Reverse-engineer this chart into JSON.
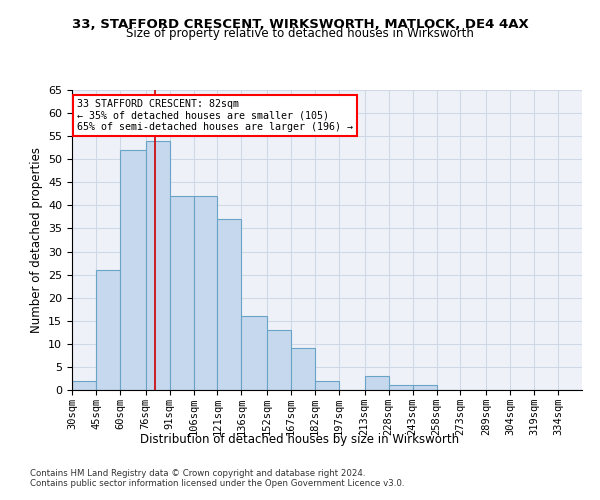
{
  "title1": "33, STAFFORD CRESCENT, WIRKSWORTH, MATLOCK, DE4 4AX",
  "title2": "Size of property relative to detached houses in Wirksworth",
  "xlabel": "Distribution of detached houses by size in Wirksworth",
  "ylabel": "Number of detached properties",
  "categories": [
    "30sqm",
    "45sqm",
    "60sqm",
    "76sqm",
    "91sqm",
    "106sqm",
    "121sqm",
    "136sqm",
    "152sqm",
    "167sqm",
    "182sqm",
    "197sqm",
    "213sqm",
    "228sqm",
    "243sqm",
    "258sqm",
    "273sqm",
    "289sqm",
    "304sqm",
    "319sqm",
    "334sqm"
  ],
  "values": [
    2,
    26,
    52,
    54,
    42,
    42,
    37,
    16,
    13,
    9,
    2,
    0,
    3,
    1,
    1,
    0,
    0,
    0,
    0,
    0,
    0
  ],
  "bar_color": "#c5d8ed",
  "bar_edge_color": "#6aa3c8",
  "property_line_x": 82,
  "bin_edges": [
    30,
    45,
    60,
    76,
    91,
    106,
    121,
    136,
    152,
    167,
    182,
    197,
    213,
    228,
    243,
    258,
    273,
    289,
    304,
    319,
    334,
    349
  ],
  "annotation_line1": "33 STAFFORD CRESCENT: 82sqm",
  "annotation_line2": "← 35% of detached houses are smaller (105)",
  "annotation_line3": "65% of semi-detached houses are larger (196) →",
  "annotation_box_color": "white",
  "annotation_box_edge_color": "red",
  "red_line_color": "#cc0000",
  "ylim": [
    0,
    65
  ],
  "yticks": [
    0,
    5,
    10,
    15,
    20,
    25,
    30,
    35,
    40,
    45,
    50,
    55,
    60,
    65
  ],
  "footer1": "Contains HM Land Registry data © Crown copyright and database right 2024.",
  "footer2": "Contains public sector information licensed under the Open Government Licence v3.0.",
  "grid_color": "#d0d8e8",
  "bg_color": "#eef2f8"
}
